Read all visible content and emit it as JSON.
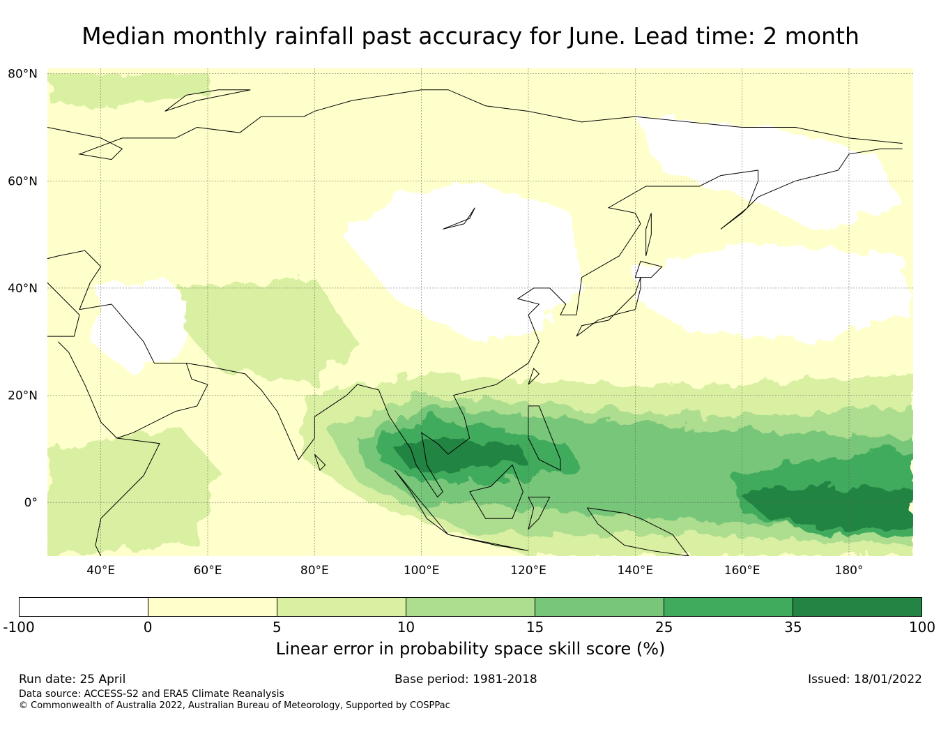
{
  "title": "Median monthly rainfall past accuracy for June. Lead time: 2 month",
  "map": {
    "lat_labels": [
      "80°N",
      "60°N",
      "40°N",
      "20°N",
      "0°"
    ],
    "lon_labels": [
      "40°E",
      "60°E",
      "80°E",
      "100°E",
      "120°E",
      "140°E",
      "160°E",
      "180°"
    ],
    "lat_values": [
      80,
      60,
      40,
      20,
      0
    ],
    "lon_values": [
      40,
      60,
      80,
      100,
      120,
      140,
      160,
      180
    ],
    "lon_range": [
      30,
      192
    ],
    "lat_range": [
      -10,
      81
    ],
    "gridlines": true,
    "colors": {
      "background": "#ffffcc",
      "white": "#ffffff",
      "pale": "#ffffcc",
      "c5": "#d9f0a3",
      "c10": "#addd8e",
      "c15": "#78c679",
      "c25": "#41ab5d",
      "c35": "#238443"
    }
  },
  "colorbar": {
    "colors": [
      "#ffffff",
      "#ffffcc",
      "#d9f0a3",
      "#addd8e",
      "#78c679",
      "#41ab5d",
      "#238443"
    ],
    "ticks": [
      "-100",
      "0",
      "5",
      "10",
      "15",
      "25",
      "35",
      "100"
    ],
    "label": "Linear error in probability space skill score (%)"
  },
  "footer": {
    "run_date": "Run date: 25 April",
    "base_period": "Base period: 1981-2018",
    "issued": "Issued: 18/01/2022",
    "data_source": "Data source: ACCESS-S2 and ERA5 Climate Reanalysis",
    "copyright": "© Commonwealth of Australia 2022, Australian Bureau of Meteorology, Supported by COSPPac"
  }
}
